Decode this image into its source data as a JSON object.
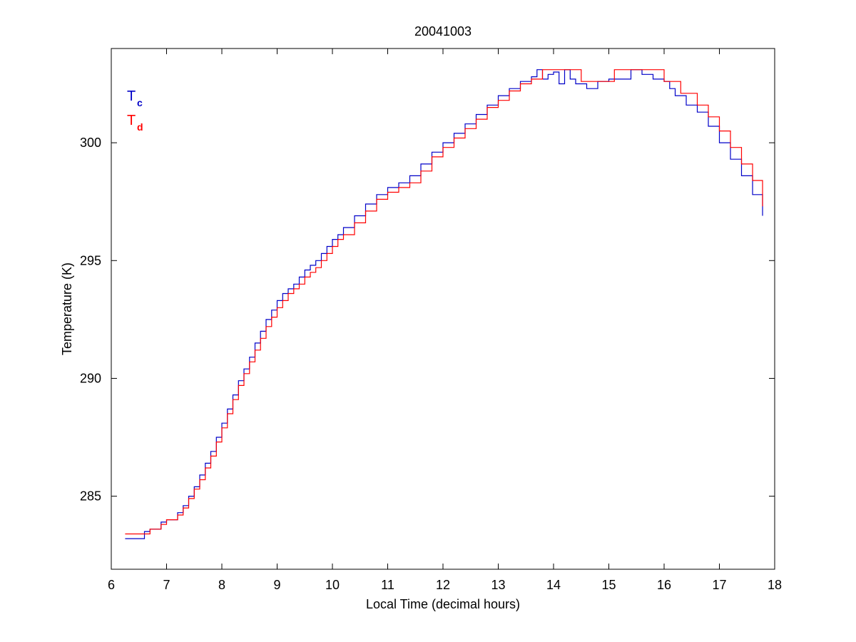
{
  "chart_data": {
    "type": "line",
    "title": "20041003",
    "xlabel": "Local Time (decimal hours)",
    "ylabel": "Temperature (K)",
    "xlim": [
      6,
      18
    ],
    "ylim": [
      281.9,
      304.0
    ],
    "xticks": [
      6,
      7,
      8,
      9,
      10,
      11,
      12,
      13,
      14,
      15,
      16,
      17,
      18
    ],
    "yticks": [
      285,
      290,
      295,
      300
    ],
    "grid": false,
    "legend_placement": "top-left",
    "series": [
      {
        "name": "Tc",
        "label_main": "T",
        "label_sub": "c",
        "color": "#0000c8",
        "x": [
          6.25,
          6.6,
          6.7,
          6.9,
          7.0,
          7.2,
          7.3,
          7.4,
          7.5,
          7.6,
          7.7,
          7.8,
          7.9,
          8.0,
          8.1,
          8.2,
          8.3,
          8.4,
          8.5,
          8.6,
          8.7,
          8.8,
          8.9,
          9.0,
          9.1,
          9.2,
          9.3,
          9.4,
          9.5,
          9.6,
          9.7,
          9.8,
          9.9,
          10.0,
          10.1,
          10.2,
          10.4,
          10.6,
          10.8,
          11.0,
          11.2,
          11.4,
          11.6,
          11.8,
          12.0,
          12.2,
          12.4,
          12.6,
          12.8,
          13.0,
          13.2,
          13.4,
          13.6,
          13.7,
          13.8,
          13.9,
          14.0,
          14.1,
          14.2,
          14.3,
          14.4,
          14.6,
          14.8,
          15.0,
          15.2,
          15.4,
          15.6,
          15.8,
          16.0,
          16.1,
          16.2,
          16.4,
          16.6,
          16.8,
          17.0,
          17.2,
          17.4,
          17.6,
          17.78
        ],
        "y": [
          283.2,
          283.5,
          283.6,
          283.9,
          284.0,
          284.3,
          284.6,
          285.0,
          285.4,
          285.9,
          286.4,
          286.9,
          287.5,
          288.1,
          288.7,
          289.3,
          289.9,
          290.4,
          290.9,
          291.5,
          292.0,
          292.5,
          292.9,
          293.3,
          293.6,
          293.8,
          294.0,
          294.3,
          294.6,
          294.8,
          295.0,
          295.3,
          295.6,
          295.9,
          296.1,
          296.4,
          296.9,
          297.4,
          297.8,
          298.1,
          298.3,
          298.6,
          299.1,
          299.6,
          300.0,
          300.4,
          300.8,
          301.2,
          301.6,
          302.0,
          302.3,
          302.6,
          302.8,
          303.1,
          302.7,
          302.9,
          303.0,
          302.5,
          303.1,
          302.7,
          302.5,
          302.3,
          302.6,
          302.7,
          302.7,
          303.1,
          302.9,
          302.7,
          302.6,
          302.3,
          302.0,
          301.6,
          301.3,
          300.7,
          300.0,
          299.3,
          298.6,
          297.8,
          296.9
        ]
      },
      {
        "name": "Td",
        "label_main": "T",
        "label_sub": "d",
        "color": "#ff0000",
        "x": [
          6.25,
          6.7,
          6.9,
          7.0,
          7.2,
          7.3,
          7.4,
          7.5,
          7.6,
          7.7,
          7.8,
          7.9,
          8.0,
          8.1,
          8.2,
          8.3,
          8.4,
          8.5,
          8.6,
          8.7,
          8.8,
          8.9,
          9.0,
          9.1,
          9.2,
          9.3,
          9.4,
          9.5,
          9.6,
          9.7,
          9.8,
          9.9,
          10.0,
          10.1,
          10.2,
          10.4,
          10.6,
          10.8,
          11.0,
          11.2,
          11.4,
          11.6,
          11.8,
          12.0,
          12.2,
          12.4,
          12.6,
          12.8,
          13.0,
          13.2,
          13.4,
          13.6,
          13.8,
          14.0,
          14.5,
          15.0,
          15.1,
          15.5,
          16.0,
          16.3,
          16.6,
          16.8,
          17.0,
          17.2,
          17.4,
          17.6,
          17.78
        ],
        "y": [
          283.4,
          283.6,
          283.8,
          284.0,
          284.2,
          284.5,
          284.9,
          285.3,
          285.7,
          286.2,
          286.7,
          287.3,
          287.9,
          288.5,
          289.1,
          289.7,
          290.2,
          290.7,
          291.2,
          291.7,
          292.2,
          292.6,
          293.0,
          293.3,
          293.6,
          293.8,
          294.0,
          294.3,
          294.5,
          294.7,
          295.0,
          295.3,
          295.6,
          295.9,
          296.1,
          296.6,
          297.1,
          297.6,
          297.9,
          298.1,
          298.3,
          298.8,
          299.4,
          299.8,
          300.2,
          300.6,
          301.0,
          301.5,
          301.8,
          302.2,
          302.5,
          302.7,
          303.1,
          303.1,
          302.6,
          302.6,
          303.1,
          303.1,
          302.6,
          302.1,
          301.6,
          301.1,
          300.5,
          299.8,
          299.1,
          298.4,
          297.3
        ]
      }
    ]
  }
}
